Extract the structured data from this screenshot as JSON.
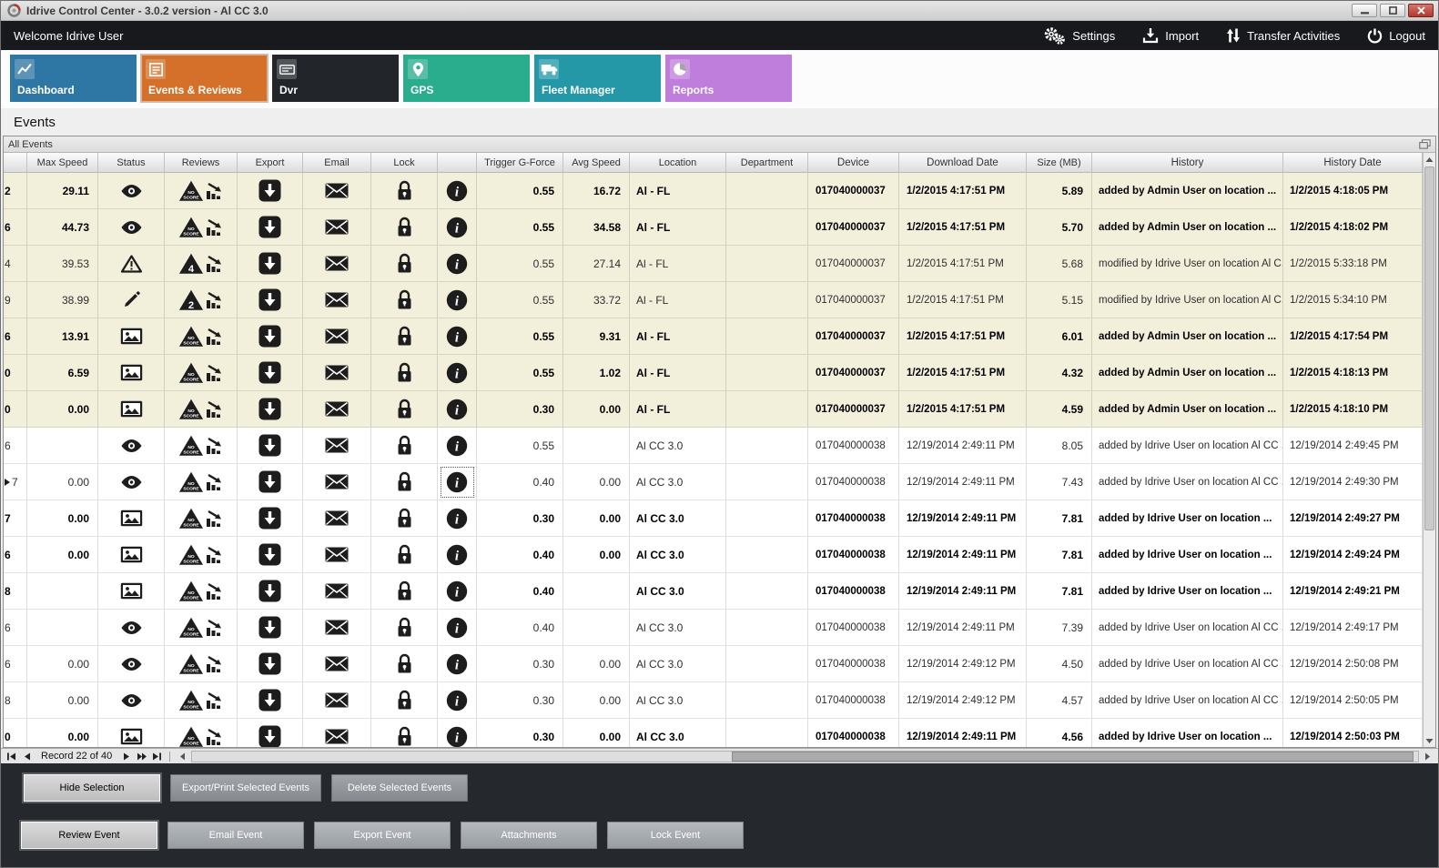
{
  "window": {
    "title": "Idrive Control Center - 3.0.2 version - Al CC 3.0"
  },
  "topbar": {
    "welcome": "Welcome Idrive User",
    "actions": [
      {
        "label": "Settings",
        "icon": "gears-icon"
      },
      {
        "label": "Import",
        "icon": "import-icon"
      },
      {
        "label": "Transfer Activities",
        "icon": "transfer-icon"
      },
      {
        "label": "Logout",
        "icon": "power-icon"
      }
    ]
  },
  "tabs": [
    {
      "label": "Dashboard",
      "color": "#2E76A3",
      "icon": "tab-dashboard-icon",
      "selected": false
    },
    {
      "label": "Events & Reviews",
      "color": "#D4702A",
      "icon": "tab-events-icon",
      "selected": true
    },
    {
      "label": "Dvr",
      "color": "#22262A",
      "icon": "tab-dvr-icon",
      "selected": false
    },
    {
      "label": "GPS",
      "color": "#29AD8D",
      "icon": "tab-gps-icon",
      "selected": false
    },
    {
      "label": "Fleet Manager",
      "color": "#2598A8",
      "icon": "tab-fleet-icon",
      "selected": false
    },
    {
      "label": "Reports",
      "color": "#BF7EDC",
      "icon": "tab-reports-icon",
      "selected": false
    }
  ],
  "page": {
    "heading": "Events"
  },
  "panel": {
    "title": "All Events"
  },
  "table": {
    "columns": [
      "",
      "Max Speed",
      "Status",
      "Reviews",
      "Export",
      "Email",
      "Lock",
      "",
      "Trigger G-Force",
      "Avg Speed",
      "Location",
      "Department",
      "Device",
      "Download Date",
      "Size (MB)",
      "History",
      "History Date"
    ],
    "rows": [
      {
        "edge": "2",
        "max_speed": "29.11",
        "status_icon": "eye-icon",
        "review_score": "NO SCORE",
        "trigger_g_force": "0.55",
        "avg_speed": "16.72",
        "location": "Al - FL",
        "department": "",
        "device": "017040000037",
        "download_date": "1/2/2015 4:17:51 PM",
        "size_mb": "5.89",
        "history": "added by Admin User on location ...",
        "history_date": "1/2/2015 4:18:05 PM",
        "bold": true,
        "shaded": true
      },
      {
        "edge": "6",
        "max_speed": "44.73",
        "status_icon": "eye-icon",
        "review_score": "NO SCORE",
        "trigger_g_force": "0.55",
        "avg_speed": "34.58",
        "location": "Al - FL",
        "department": "",
        "device": "017040000037",
        "download_date": "1/2/2015 4:17:51 PM",
        "size_mb": "5.70",
        "history": "added by Admin User on location ...",
        "history_date": "1/2/2015 4:18:02 PM",
        "bold": true,
        "shaded": true
      },
      {
        "edge": "4",
        "max_speed": "39.53",
        "status_icon": "warning-icon",
        "review_score": "4",
        "trigger_g_force": "0.55",
        "avg_speed": "27.14",
        "location": "Al - FL",
        "department": "",
        "device": "017040000037",
        "download_date": "1/2/2015 4:17:51 PM",
        "size_mb": "5.68",
        "history": "modified by Idrive User on location Al C...",
        "history_date": "1/2/2015 5:33:18 PM",
        "bold": false,
        "shaded": true
      },
      {
        "edge": "9",
        "max_speed": "38.99",
        "status_icon": "pencil-icon",
        "review_score": "2",
        "trigger_g_force": "0.55",
        "avg_speed": "33.72",
        "location": "Al - FL",
        "department": "",
        "device": "017040000037",
        "download_date": "1/2/2015 4:17:51 PM",
        "size_mb": "5.15",
        "history": "modified by Idrive User on location Al C...",
        "history_date": "1/2/2015 5:34:10 PM",
        "bold": false,
        "shaded": true
      },
      {
        "edge": "6",
        "max_speed": "13.91",
        "status_icon": "image-icon",
        "review_score": "NO SCORE",
        "trigger_g_force": "0.55",
        "avg_speed": "9.31",
        "location": "Al - FL",
        "department": "",
        "device": "017040000037",
        "download_date": "1/2/2015 4:17:51 PM",
        "size_mb": "6.01",
        "history": "added by Admin User on location ...",
        "history_date": "1/2/2015 4:17:54 PM",
        "bold": true,
        "shaded": true
      },
      {
        "edge": "0",
        "max_speed": "6.59",
        "status_icon": "image-icon",
        "review_score": "NO SCORE",
        "trigger_g_force": "0.55",
        "avg_speed": "1.02",
        "location": "Al - FL",
        "department": "",
        "device": "017040000037",
        "download_date": "1/2/2015 4:17:51 PM",
        "size_mb": "4.32",
        "history": "added by Admin User on location ...",
        "history_date": "1/2/2015 4:18:13 PM",
        "bold": true,
        "shaded": true
      },
      {
        "edge": "0",
        "max_speed": "0.00",
        "status_icon": "image-icon",
        "review_score": "NO SCORE",
        "trigger_g_force": "0.30",
        "avg_speed": "0.00",
        "location": "Al - FL",
        "department": "",
        "device": "017040000037",
        "download_date": "1/2/2015 4:17:51 PM",
        "size_mb": "4.59",
        "history": "added by Admin User on location ...",
        "history_date": "1/2/2015 4:18:10 PM",
        "bold": true,
        "shaded": true
      },
      {
        "edge": "6",
        "max_speed": "",
        "status_icon": "eye-icon",
        "review_score": "NO SCORE",
        "trigger_g_force": "0.55",
        "avg_speed": "",
        "location": "Al CC 3.0",
        "department": "",
        "device": "017040000038",
        "download_date": "12/19/2014 2:49:11 PM",
        "size_mb": "8.05",
        "history": "added by Idrive User on location Al CC ...",
        "history_date": "12/19/2014 2:49:45 PM",
        "bold": false,
        "shaded": false
      },
      {
        "edge": "7",
        "max_speed": "0.00",
        "status_icon": "eye-icon",
        "review_score": "NO SCORE",
        "trigger_g_force": "0.40",
        "avg_speed": "0.00",
        "location": "Al CC 3.0",
        "department": "",
        "device": "017040000038",
        "download_date": "12/19/2014 2:49:11 PM",
        "size_mb": "7.43",
        "history": "added by Idrive User on location Al CC ...",
        "history_date": "12/19/2014 2:49:30 PM",
        "bold": false,
        "shaded": false,
        "current": true,
        "info_selected": true
      },
      {
        "edge": "7",
        "max_speed": "0.00",
        "status_icon": "image-icon",
        "review_score": "NO SCORE",
        "trigger_g_force": "0.30",
        "avg_speed": "0.00",
        "location": "Al CC 3.0",
        "department": "",
        "device": "017040000038",
        "download_date": "12/19/2014 2:49:11 PM",
        "size_mb": "7.81",
        "history": "added by Idrive User on location ...",
        "history_date": "12/19/2014 2:49:27 PM",
        "bold": true,
        "shaded": false
      },
      {
        "edge": "6",
        "max_speed": "0.00",
        "status_icon": "image-icon",
        "review_score": "NO SCORE",
        "trigger_g_force": "0.40",
        "avg_speed": "0.00",
        "location": "Al CC 3.0",
        "department": "",
        "device": "017040000038",
        "download_date": "12/19/2014 2:49:11 PM",
        "size_mb": "7.81",
        "history": "added by Idrive User on location ...",
        "history_date": "12/19/2014 2:49:24 PM",
        "bold": true,
        "shaded": false
      },
      {
        "edge": "8",
        "max_speed": "",
        "status_icon": "image-icon",
        "review_score": "NO SCORE",
        "trigger_g_force": "0.40",
        "avg_speed": "",
        "location": "Al CC 3.0",
        "department": "",
        "device": "017040000038",
        "download_date": "12/19/2014 2:49:11 PM",
        "size_mb": "7.81",
        "history": "added by Idrive User on location ...",
        "history_date": "12/19/2014 2:49:21 PM",
        "bold": true,
        "shaded": false
      },
      {
        "edge": "6",
        "max_speed": "",
        "status_icon": "eye-icon",
        "review_score": "NO SCORE",
        "trigger_g_force": "0.40",
        "avg_speed": "",
        "location": "Al CC 3.0",
        "department": "",
        "device": "017040000038",
        "download_date": "12/19/2014 2:49:11 PM",
        "size_mb": "7.39",
        "history": "added by Idrive User on location Al CC ...",
        "history_date": "12/19/2014 2:49:17 PM",
        "bold": false,
        "shaded": false
      },
      {
        "edge": "6",
        "max_speed": "0.00",
        "status_icon": "eye-icon",
        "review_score": "NO SCORE",
        "trigger_g_force": "0.30",
        "avg_speed": "0.00",
        "location": "Al CC 3.0",
        "department": "",
        "device": "017040000038",
        "download_date": "12/19/2014 2:49:12 PM",
        "size_mb": "4.50",
        "history": "added by Idrive User on location Al CC ...",
        "history_date": "12/19/2014 2:50:08 PM",
        "bold": false,
        "shaded": false
      },
      {
        "edge": "8",
        "max_speed": "0.00",
        "status_icon": "eye-icon",
        "review_score": "NO SCORE",
        "trigger_g_force": "0.30",
        "avg_speed": "0.00",
        "location": "Al CC 3.0",
        "department": "",
        "device": "017040000038",
        "download_date": "12/19/2014 2:49:12 PM",
        "size_mb": "4.57",
        "history": "added by Idrive User on location Al CC ...",
        "history_date": "12/19/2014 2:50:05 PM",
        "bold": false,
        "shaded": false
      },
      {
        "edge": "0",
        "max_speed": "0.00",
        "status_icon": "image-icon",
        "review_score": "NO SCORE",
        "trigger_g_force": "0.30",
        "avg_speed": "0.00",
        "location": "Al CC 3.0",
        "department": "",
        "device": "017040000038",
        "download_date": "12/19/2014 2:49:11 PM",
        "size_mb": "4.56",
        "history": "added by Idrive User on location ...",
        "history_date": "12/19/2014 2:50:03 PM",
        "bold": true,
        "shaded": false
      }
    ]
  },
  "pager": {
    "record_text": "Record 22 of 40"
  },
  "footer": {
    "row1": [
      "Hide Selection",
      "Export/Print Selected Events",
      "Delete Selected Events"
    ],
    "row2": [
      "Review Event",
      "Email Event",
      "Export Event",
      "Attachments",
      "Lock Event"
    ]
  }
}
